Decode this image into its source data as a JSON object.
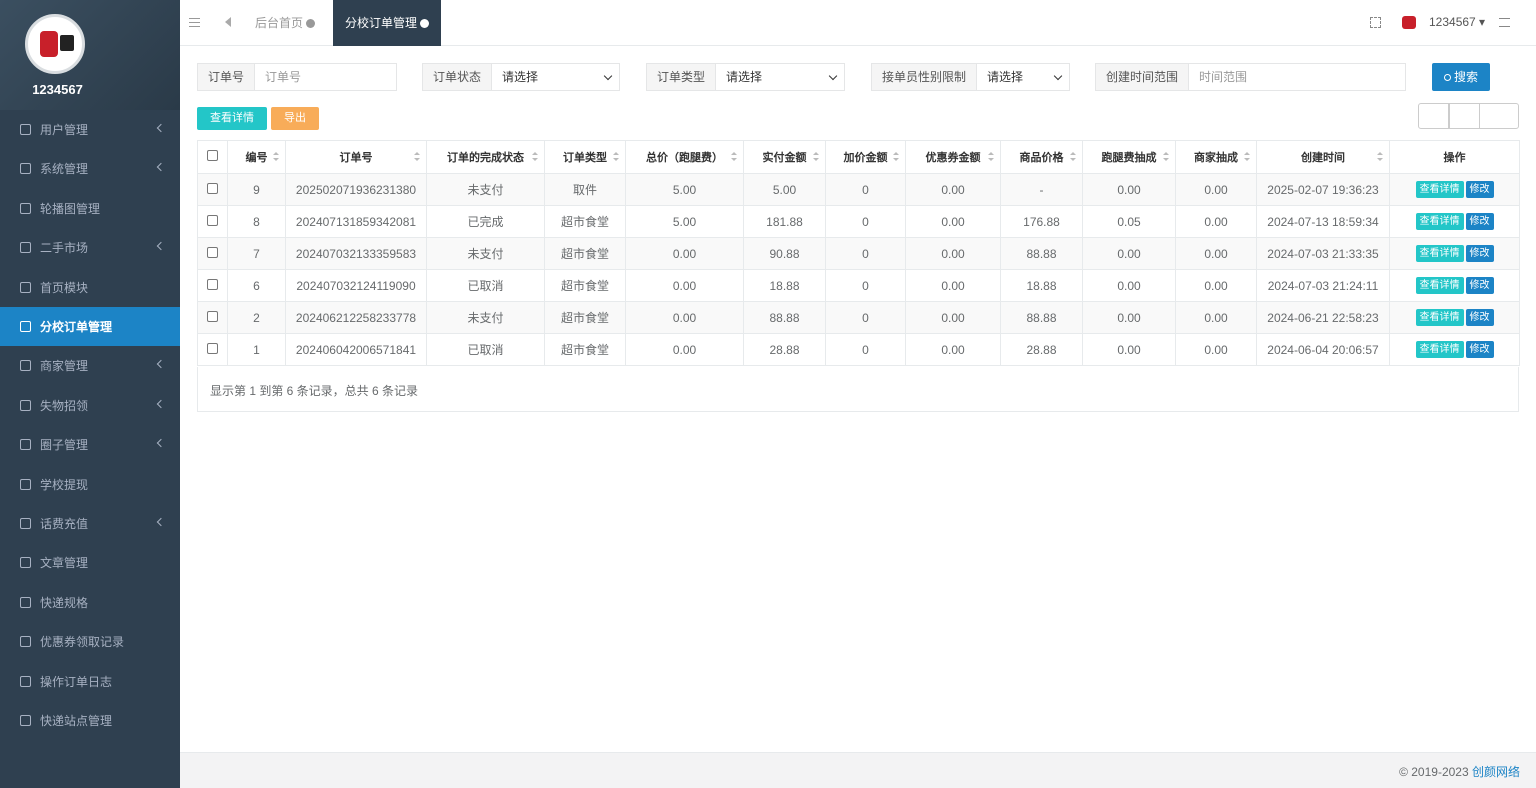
{
  "sidebar": {
    "username": "1234567",
    "menu": [
      {
        "label": "用户管理",
        "submenu": true
      },
      {
        "label": "系统管理",
        "submenu": true
      },
      {
        "label": "轮播图管理",
        "submenu": false
      },
      {
        "label": "二手市场",
        "submenu": true
      },
      {
        "label": "首页模块",
        "submenu": false
      },
      {
        "label": "分校订单管理",
        "submenu": false,
        "active": true
      },
      {
        "label": "商家管理",
        "submenu": true
      },
      {
        "label": "失物招领",
        "submenu": true
      },
      {
        "label": "圈子管理",
        "submenu": true
      },
      {
        "label": "学校提现",
        "submenu": false
      },
      {
        "label": "话费充值",
        "submenu": true
      },
      {
        "label": "文章管理",
        "submenu": false
      },
      {
        "label": "快递规格",
        "submenu": false
      },
      {
        "label": "优惠券领取记录",
        "submenu": false
      },
      {
        "label": "操作订单日志",
        "submenu": false
      },
      {
        "label": "快递站点管理",
        "submenu": false
      }
    ]
  },
  "header": {
    "tabs": [
      {
        "label": "后台首页",
        "active": false
      },
      {
        "label": "分校订单管理",
        "active": true
      }
    ],
    "user": "1234567"
  },
  "filters": [
    {
      "label": "订单号",
      "placeholder": "订单号",
      "select": false
    },
    {
      "label": "订单状态",
      "placeholder": "请选择",
      "select": true
    },
    {
      "label": "订单类型",
      "placeholder": "请选择",
      "select": true
    },
    {
      "label": "接单员性别限制",
      "placeholder": "请选择",
      "select": true
    },
    {
      "label": "创建时间范围",
      "placeholder": "时间范围",
      "select": false
    }
  ],
  "search_button": "搜索",
  "toolbar": {
    "detail": "查看详情",
    "export": "导出"
  },
  "table": {
    "columns": [
      "编号",
      "订单号",
      "订单的完成状态",
      "订单类型",
      "总价（跑腿费）",
      "实付金额",
      "加价金额",
      "优惠券金额",
      "商品价格",
      "跑腿费抽成",
      "商家抽成",
      "创建时间",
      "操作"
    ],
    "actions": [
      "查看详情",
      "修改"
    ],
    "rows": [
      [
        "9",
        "202502071936231380",
        "未支付",
        "取件",
        "5.00",
        "5.00",
        "0",
        "0.00",
        "-",
        "0.00",
        "0.00",
        "2025-02-07 19:36:23"
      ],
      [
        "8",
        "202407131859342081",
        "已完成",
        "超市食堂",
        "5.00",
        "181.88",
        "0",
        "0.00",
        "176.88",
        "0.05",
        "0.00",
        "2024-07-13 18:59:34"
      ],
      [
        "7",
        "202407032133359583",
        "未支付",
        "超市食堂",
        "0.00",
        "90.88",
        "0",
        "0.00",
        "88.88",
        "0.00",
        "0.00",
        "2024-07-03 21:33:35"
      ],
      [
        "6",
        "202407032124119090",
        "已取消",
        "超市食堂",
        "0.00",
        "18.88",
        "0",
        "0.00",
        "18.88",
        "0.00",
        "0.00",
        "2024-07-03 21:24:11"
      ],
      [
        "2",
        "202406212258233778",
        "未支付",
        "超市食堂",
        "0.00",
        "88.88",
        "0",
        "0.00",
        "88.88",
        "0.00",
        "0.00",
        "2024-06-21 22:58:23"
      ],
      [
        "1",
        "202406042006571841",
        "已取消",
        "超市食堂",
        "0.00",
        "28.88",
        "0",
        "0.00",
        "28.88",
        "0.00",
        "0.00",
        "2024-06-04 20:06:57"
      ]
    ]
  },
  "pagination": "显示第 1 到第 6 条记录，总共 6 条记录",
  "footer": {
    "copyright": "© 2019-2023",
    "company": "创颜网络"
  }
}
